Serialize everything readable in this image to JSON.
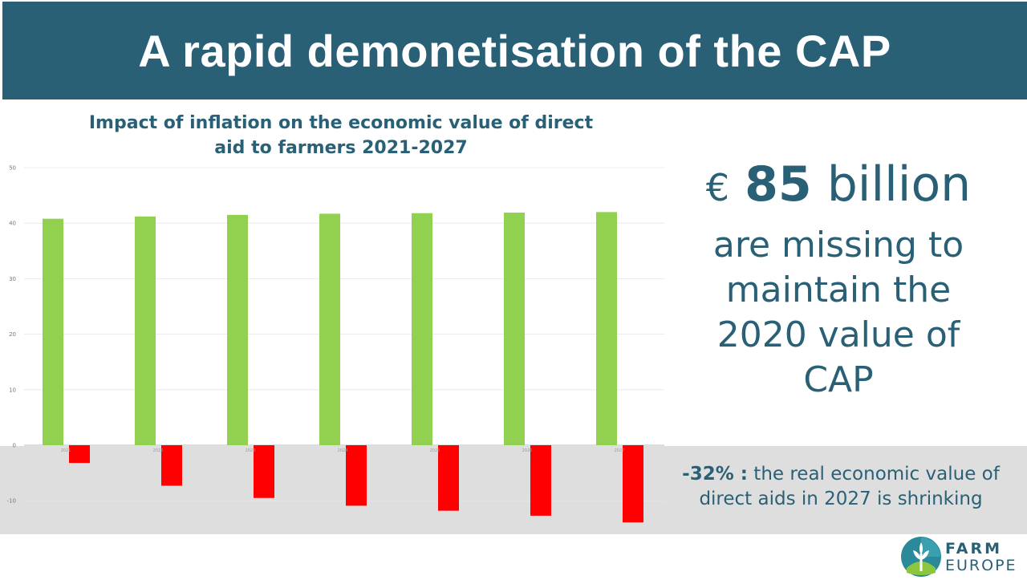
{
  "header": {
    "title": "A rapid demonetisation of the CAP"
  },
  "stat": {
    "currency": "€",
    "amount": "85",
    "unit": "billion",
    "lines": [
      "are missing to",
      "maintain the",
      "2020 value of",
      "CAP"
    ]
  },
  "note": {
    "pct": "-32% :",
    "text": "the real economic value of direct aids in 2027 is shrinking"
  },
  "logo": {
    "line1": "FARM",
    "line2": "EUROPE"
  },
  "colors": {
    "header": "#2a6076",
    "positive": "#92d050",
    "negative": "#ff0000",
    "text": "#2a6076"
  },
  "chart_data": {
    "type": "bar",
    "title": "Impact of inflation on the economic value of direct aid to farmers 2021-2027",
    "categories": [
      "2021",
      "2022",
      "2023",
      "2024",
      "2025",
      "2026",
      "2027"
    ],
    "series": [
      {
        "values": [
          40.8,
          41.2,
          41.5,
          41.7,
          41.8,
          41.9,
          42.0
        ]
      },
      {
        "values": [
          -3.2,
          -7.3,
          -9.5,
          -10.9,
          -11.8,
          -12.7,
          -13.9
        ]
      }
    ],
    "yticks": [
      50,
      40,
      30,
      20,
      10,
      0,
      -10
    ],
    "ylim": [
      -15,
      50
    ],
    "grid": true
  }
}
